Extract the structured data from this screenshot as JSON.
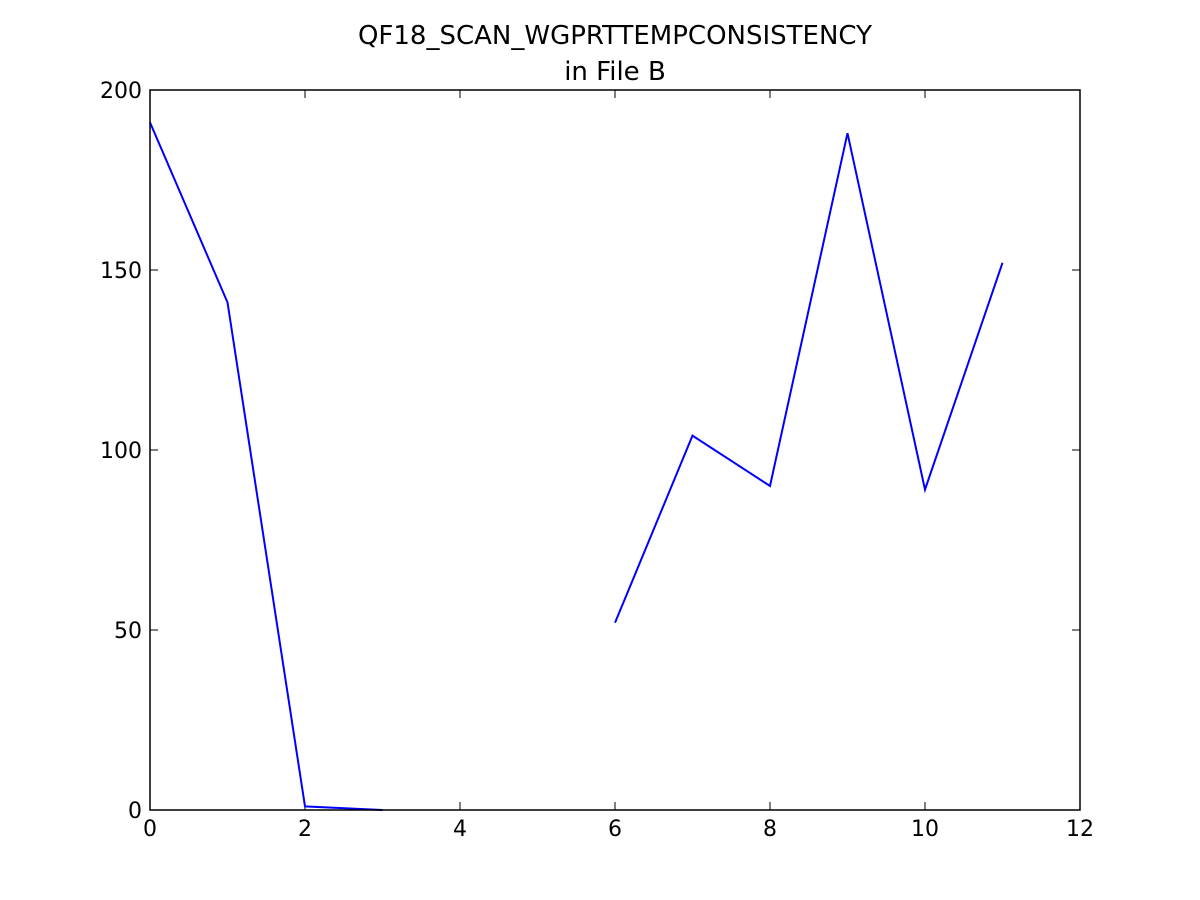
{
  "chart_data": {
    "type": "line",
    "title": [
      "QF18_SCAN_WGPRTTEMPCONSISTENCY",
      "in File B"
    ],
    "x": [
      0,
      1,
      2,
      3,
      4,
      5,
      6,
      7,
      8,
      9,
      10,
      11
    ],
    "series": [
      {
        "color": "#0000ff",
        "values": [
          191,
          141,
          1,
          0,
          null,
          null,
          52,
          104,
          90,
          188,
          89,
          152
        ]
      }
    ],
    "xlim": [
      0,
      12
    ],
    "xticks": [
      0,
      2,
      4,
      6,
      8,
      10,
      12
    ],
    "ylim": [
      0,
      200
    ],
    "yticks": [
      0,
      50,
      100,
      150,
      200
    ],
    "grid": false
  }
}
